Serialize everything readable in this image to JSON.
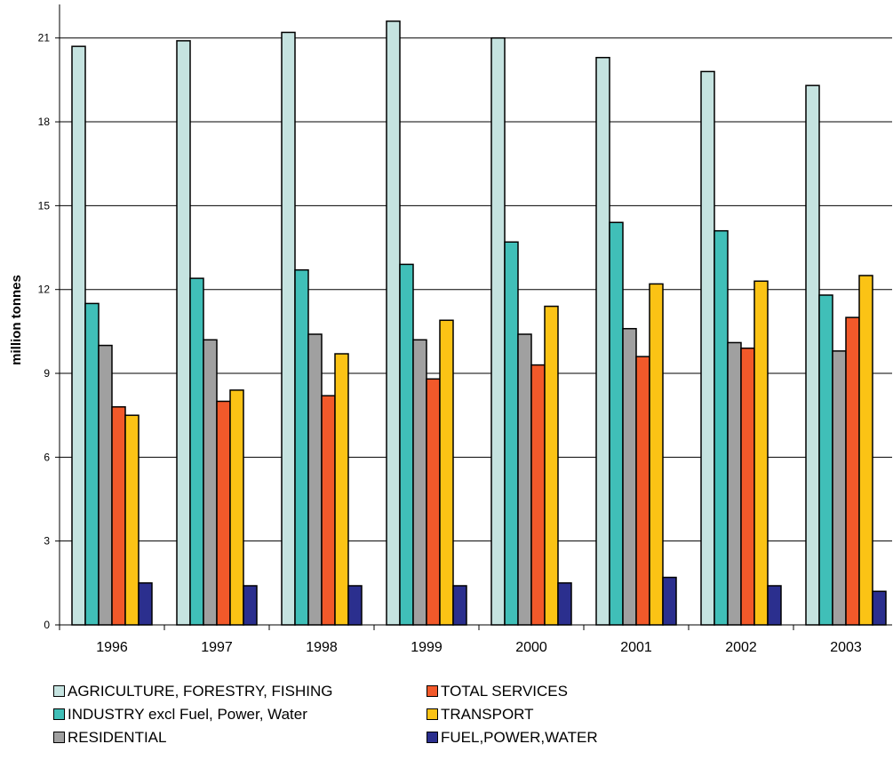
{
  "chart_data": {
    "type": "bar",
    "title": "",
    "xlabel": "",
    "ylabel": "million tonnes",
    "ylim": [
      0,
      22.2
    ],
    "yticks": [
      0,
      3,
      6,
      9,
      12,
      15,
      18,
      21
    ],
    "grid": true,
    "legend_position": "bottom",
    "categories": [
      "1996",
      "1997",
      "1998",
      "1999",
      "2000",
      "2001",
      "2002",
      "2003"
    ],
    "series": [
      {
        "name": "AGRICULTURE, FORESTRY, FISHING",
        "color": "#c5e3e0",
        "values": [
          20.7,
          20.9,
          21.2,
          21.6,
          21.0,
          20.3,
          19.8,
          19.3
        ]
      },
      {
        "name": "INDUSTRY excl Fuel, Power, Water",
        "color": "#40bfb8",
        "values": [
          11.5,
          12.4,
          12.7,
          12.9,
          13.7,
          14.4,
          14.1,
          11.8
        ]
      },
      {
        "name": "RESIDENTIAL",
        "color": "#a0a0a0",
        "values": [
          10.0,
          10.2,
          10.4,
          10.2,
          10.4,
          10.6,
          10.1,
          9.8
        ]
      },
      {
        "name": "TOTAL SERVICES",
        "color": "#f2592a",
        "values": [
          7.8,
          8.0,
          8.2,
          8.8,
          9.3,
          9.6,
          9.9,
          11.0
        ]
      },
      {
        "name": "TRANSPORT",
        "color": "#fbc315",
        "values": [
          7.5,
          8.4,
          9.7,
          10.9,
          11.4,
          12.2,
          12.3,
          12.5
        ]
      },
      {
        "name": "FUEL,POWER,WATER",
        "color": "#2b2f8e",
        "values": [
          1.5,
          1.4,
          1.4,
          1.4,
          1.5,
          1.7,
          1.4,
          1.2
        ]
      }
    ]
  }
}
